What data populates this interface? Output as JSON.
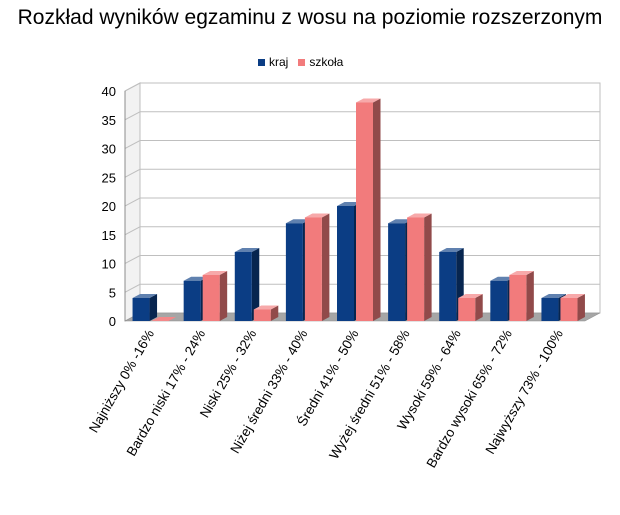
{
  "chart_data": {
    "type": "bar",
    "title": "Rozkład wyników egzaminu z wosu na poziomie rozszerzonym",
    "categories": [
      "Najniższy 0% -16%",
      "Bardzo niski 17% - 24%",
      "Niski 25% - 32%",
      "Niżej średni 33% - 40%",
      "Średni 41% - 50%",
      "Wyżej średni 51% - 58%",
      "Wysoki 59% - 64%",
      "Bardzo wysoki 65% - 72%",
      "Najwyższy 73% - 100%"
    ],
    "series": [
      {
        "name": "kraj",
        "color": "#0b3d84",
        "values": [
          4,
          7,
          12,
          17,
          20,
          17,
          12,
          7,
          4
        ]
      },
      {
        "name": "szkoła",
        "color": "#f27b7c",
        "values": [
          0,
          8,
          2,
          18,
          38,
          18,
          4,
          8,
          4
        ]
      }
    ],
    "ylim": [
      0,
      40
    ],
    "yticks": [
      0,
      5,
      10,
      15,
      20,
      25,
      30,
      35,
      40
    ],
    "grid": true,
    "legend_position": "top"
  }
}
